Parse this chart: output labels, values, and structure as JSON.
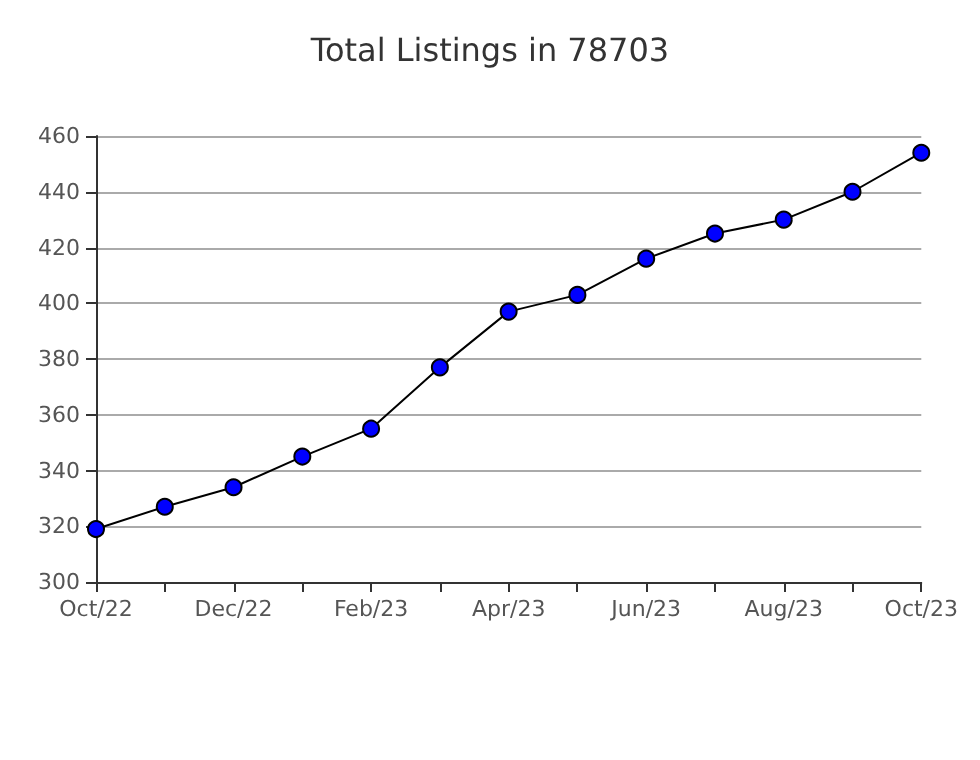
{
  "chart_data": {
    "type": "line",
    "title": "Total Listings in 78703",
    "categories": [
      "Oct/22",
      null,
      "Dec/22",
      null,
      "Feb/23",
      null,
      "Apr/23",
      null,
      "Jun/23",
      null,
      "Aug/23",
      null,
      "Oct/23"
    ],
    "series": [
      {
        "color": "#0000ff",
        "values": [
          319,
          327,
          334,
          345,
          355,
          377,
          397,
          403,
          416,
          425,
          430,
          440,
          454
        ]
      }
    ],
    "ylim": [
      300,
      460
    ],
    "yticks": [
      300,
      320,
      340,
      360,
      380,
      400,
      420,
      440,
      460
    ],
    "grid": "y",
    "marker": "circle",
    "line_style": "solid"
  }
}
